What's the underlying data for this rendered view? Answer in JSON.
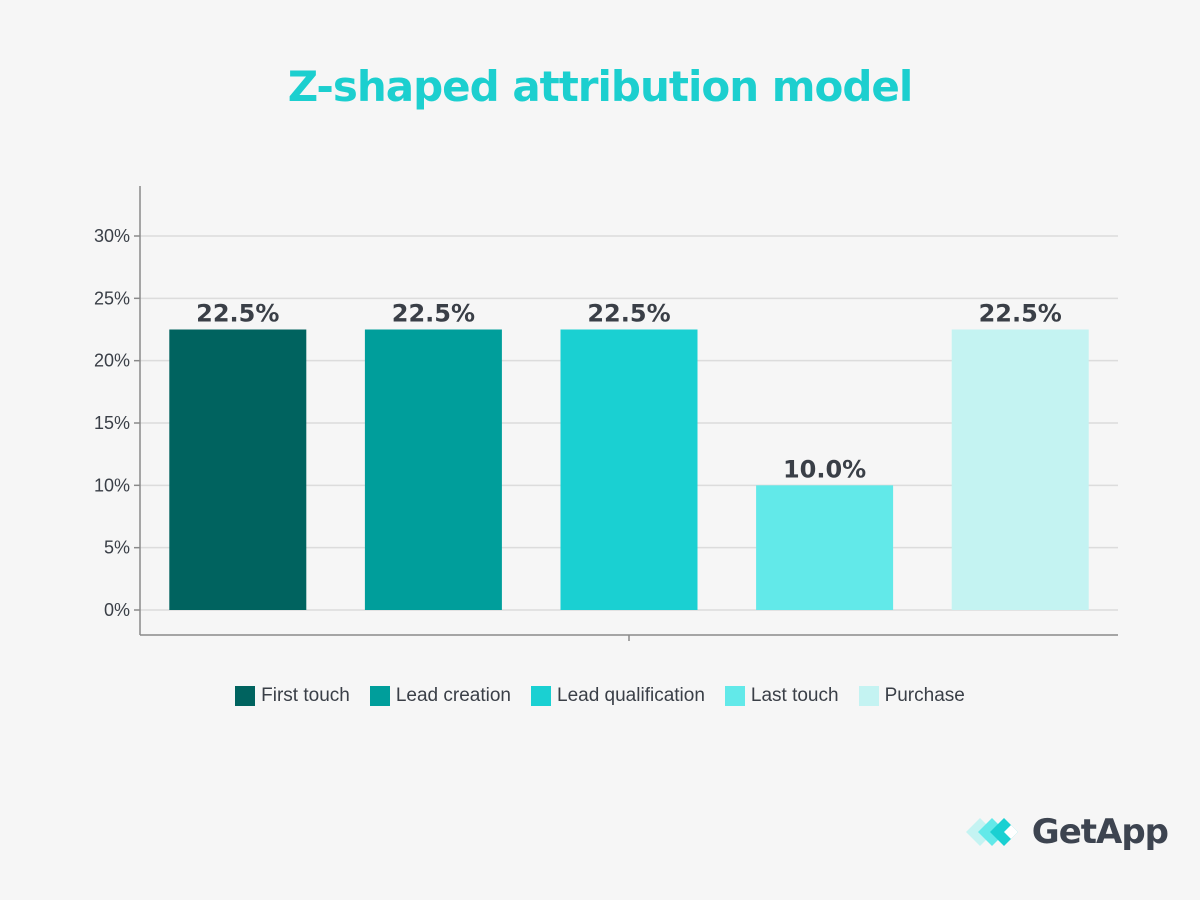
{
  "chart_data": {
    "type": "bar",
    "title": "Z-shaped attribution model",
    "categories": [
      "First touch",
      "Lead creation",
      "Lead qualification",
      "Last touch",
      "Purchase"
    ],
    "values": [
      22.5,
      22.5,
      22.5,
      10.0,
      22.5
    ],
    "value_labels": [
      "22.5%",
      "22.5%",
      "22.5%",
      "10.0%",
      "22.5%"
    ],
    "colors": [
      "#00635f",
      "#009e9b",
      "#1ad0d2",
      "#62e9e9",
      "#c4f3f2"
    ],
    "ylim": [
      0,
      30
    ],
    "yticks": [
      0,
      5,
      10,
      15,
      20,
      25,
      30
    ],
    "ytick_labels": [
      "0%",
      "5%",
      "10%",
      "15%",
      "20%",
      "25%",
      "30%"
    ],
    "xlabel": "",
    "ylabel": "",
    "grid": true,
    "legend": "bottom-center"
  },
  "legend": {
    "items": [
      {
        "label": "First touch",
        "color": "#00635f"
      },
      {
        "label": "Lead creation",
        "color": "#009e9b"
      },
      {
        "label": "Lead qualification",
        "color": "#1ad0d2"
      },
      {
        "label": "Last touch",
        "color": "#62e9e9"
      },
      {
        "label": "Purchase",
        "color": "#c4f3f2"
      }
    ]
  },
  "brand": {
    "name": "GetApp",
    "icon": "getapp-chevrons-icon"
  },
  "colors": {
    "title": "#1ccfcf",
    "text": "#3a3f47",
    "background": "#f6f6f6"
  }
}
